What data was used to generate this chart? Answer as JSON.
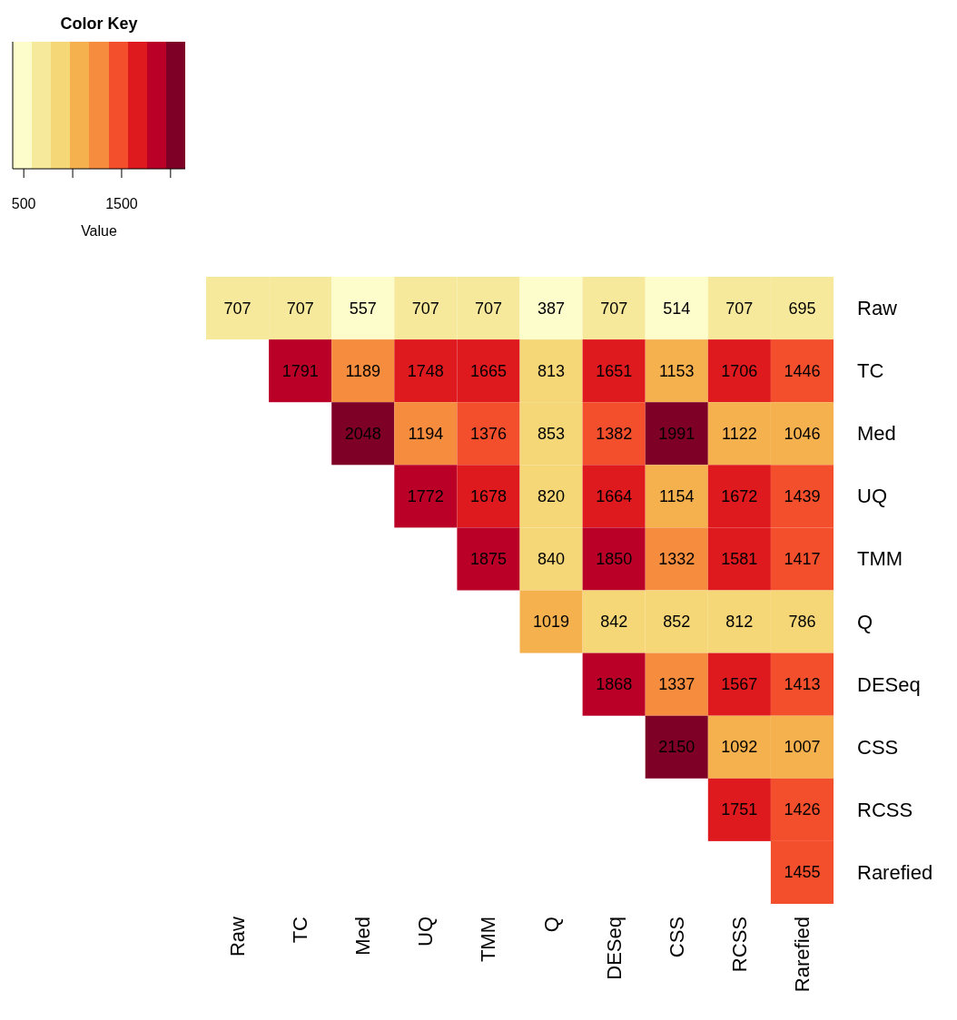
{
  "chart_data": {
    "type": "heatmap",
    "legend_title": "Color Key",
    "clabel": "Value",
    "categories": [
      "Raw",
      "TC",
      "Med",
      "UQ",
      "TMM",
      "Q",
      "DESeq",
      "CSS",
      "RCSS",
      "Rarefied"
    ],
    "y_categories": [
      "Raw",
      "TC",
      "Med",
      "UQ",
      "TMM",
      "Q",
      "DESeq",
      "CSS",
      "RCSS",
      "Rarefied"
    ],
    "cells": [
      [
        707,
        707,
        557,
        707,
        707,
        387,
        707,
        514,
        707,
        695
      ],
      [
        null,
        1791,
        1189,
        1748,
        1665,
        813,
        1651,
        1153,
        1706,
        1446
      ],
      [
        null,
        null,
        2048,
        1194,
        1376,
        853,
        1382,
        1991,
        1122,
        1046
      ],
      [
        null,
        null,
        null,
        1772,
        1678,
        820,
        1664,
        1154,
        1672,
        1439
      ],
      [
        null,
        null,
        null,
        null,
        1875,
        840,
        1850,
        1332,
        1581,
        1417
      ],
      [
        null,
        null,
        null,
        null,
        null,
        1019,
        842,
        852,
        812,
        786
      ],
      [
        null,
        null,
        null,
        null,
        null,
        null,
        1868,
        1337,
        1567,
        1413
      ],
      [
        null,
        null,
        null,
        null,
        null,
        null,
        null,
        2150,
        1092,
        1007
      ],
      [
        null,
        null,
        null,
        null,
        null,
        null,
        null,
        null,
        1751,
        1426
      ],
      [
        null,
        null,
        null,
        null,
        null,
        null,
        null,
        null,
        null,
        1455
      ]
    ],
    "clim": [
      387,
      2150
    ],
    "cticks": [
      500,
      {
        "value": 1000,
        "label": null
      },
      1500,
      {
        "value": 2000,
        "label": null
      }
    ],
    "colors": [
      "#fdfdcb",
      "#f7e99c",
      "#f5d778",
      "#f6b14f",
      "#f68c3e",
      "#f44f2d",
      "#df1a1e",
      "#bb0028",
      "#7e0027"
    ],
    "data_labels": true
  }
}
